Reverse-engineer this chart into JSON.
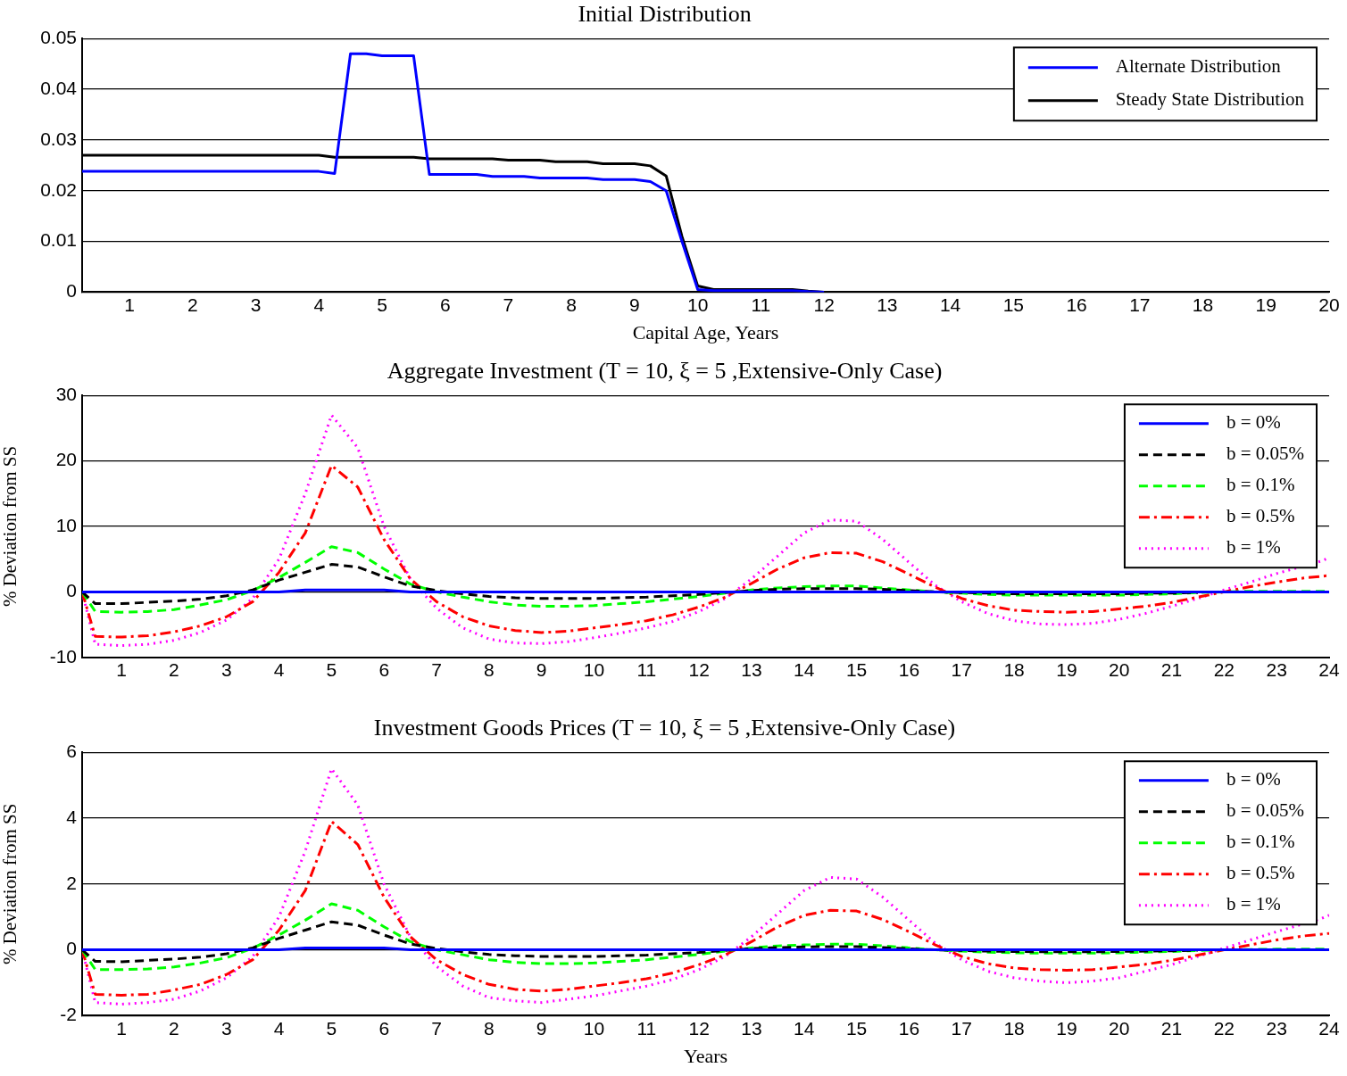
{
  "chart_data": [
    {
      "type": "line",
      "title": "Initial Distribution",
      "xlabel": "Capital Age, Years",
      "xlim": [
        0.25,
        20
      ],
      "xticks": [
        1,
        2,
        3,
        4,
        5,
        6,
        7,
        8,
        9,
        10,
        11,
        12,
        13,
        14,
        15,
        16,
        17,
        18,
        19,
        20
      ],
      "ylim": [
        0,
        0.05
      ],
      "yticks": [
        0,
        0.01,
        0.02,
        0.03,
        0.04,
        0.05
      ],
      "grid": "y",
      "legend": "top right",
      "marker": "none",
      "series": [
        {
          "name": "Alternate Distribution",
          "color": "#0000ff",
          "line_style": "solid",
          "x": [
            0.25,
            4,
            4.25,
            4.5,
            4.75,
            5,
            5.5,
            5.75,
            6.5,
            6.75,
            7.25,
            7.5,
            8.25,
            8.5,
            9,
            9.25,
            9.5,
            9.75,
            10,
            10.25,
            11.5,
            11.75,
            12
          ],
          "values": [
            0.0238,
            0.0238,
            0.0234,
            0.047,
            0.047,
            0.0466,
            0.0466,
            0.0232,
            0.0232,
            0.0228,
            0.0228,
            0.0225,
            0.0225,
            0.0222,
            0.0222,
            0.0218,
            0.02,
            0.01,
            0.0005,
            0.0003,
            0.0003,
            0.0001,
            0
          ]
        },
        {
          "name": "Steady State Distribution",
          "color": "#000000",
          "line_style": "solid",
          "x": [
            0.25,
            4,
            4.25,
            5.5,
            5.75,
            6.75,
            7,
            7.5,
            7.75,
            8.25,
            8.5,
            9,
            9.25,
            9.5,
            9.75,
            10,
            10.25,
            11.5,
            11.75,
            12
          ],
          "values": [
            0.027,
            0.027,
            0.0266,
            0.0266,
            0.0263,
            0.0263,
            0.026,
            0.026,
            0.0257,
            0.0257,
            0.0253,
            0.0253,
            0.0249,
            0.0229,
            0.011,
            0.0012,
            0.0005,
            0.0005,
            0.0002,
            0
          ]
        }
      ]
    },
    {
      "type": "line",
      "title": "Aggregate Investment (T = 10, ξ = 5 ,Extensive-Only Case)",
      "ylabel": "% Deviation from SS",
      "xlim": [
        0.25,
        24
      ],
      "xticks": [
        1,
        2,
        3,
        4,
        5,
        6,
        7,
        8,
        9,
        10,
        11,
        12,
        13,
        14,
        15,
        16,
        17,
        18,
        19,
        20,
        21,
        22,
        23,
        24
      ],
      "ylim": [
        -10,
        30
      ],
      "yticks": [
        -10,
        0,
        10,
        20,
        30
      ],
      "grid": "y",
      "legend": "top right",
      "marker": "none",
      "x": [
        0.25,
        0.5,
        1,
        1.5,
        2,
        2.5,
        3,
        3.5,
        4,
        4.5,
        5,
        5.5,
        6,
        6.5,
        7,
        7.5,
        8,
        8.5,
        9,
        9.5,
        10,
        10.5,
        11,
        11.5,
        12,
        12.5,
        13,
        13.5,
        14,
        14.5,
        15,
        15.5,
        16,
        16.5,
        17,
        17.5,
        18,
        18.5,
        19,
        19.5,
        20,
        20.5,
        21,
        21.5,
        22,
        22.5,
        23,
        23.5,
        24
      ],
      "series": [
        {
          "name": "b = 0%",
          "color": "#0000ff",
          "line_style": "solid",
          "values": [
            0,
            0,
            0,
            0,
            0,
            0,
            0,
            0,
            0,
            0.3,
            0.3,
            0.3,
            0.3,
            0,
            0,
            0,
            0,
            0,
            0,
            0,
            0,
            0,
            0,
            0,
            0,
            0,
            0,
            0,
            0,
            0,
            0,
            0,
            0,
            0,
            0,
            0,
            0,
            0,
            0,
            0,
            0,
            0,
            0,
            0,
            0,
            0,
            0,
            0,
            0
          ]
        },
        {
          "name": "b = 0.05%",
          "color": "#000000",
          "line_style": "dashed",
          "values": [
            0,
            -1.8,
            -1.8,
            -1.6,
            -1.4,
            -1.1,
            -0.6,
            0.3,
            1.8,
            3,
            4.2,
            3.8,
            2.3,
            0.9,
            0.2,
            -0.3,
            -0.7,
            -0.9,
            -1,
            -1,
            -1,
            -0.9,
            -0.8,
            -0.6,
            -0.4,
            -0.1,
            0.2,
            0.4,
            0.5,
            0.5,
            0.5,
            0.4,
            0.2,
            0,
            -0.1,
            -0.2,
            -0.3,
            -0.3,
            -0.3,
            -0.3,
            -0.3,
            -0.2,
            -0.2,
            -0.1,
            null,
            null,
            null,
            null,
            null
          ]
        },
        {
          "name": "b = 0.1%",
          "color": "#00ff00",
          "line_style": "dashed",
          "values": [
            0,
            -3,
            -3.1,
            -3,
            -2.7,
            -2,
            -1.2,
            0.2,
            2.2,
            4.5,
            6.9,
            6,
            3.5,
            1.2,
            0,
            -0.8,
            -1.5,
            -2,
            -2.2,
            -2.2,
            -2.1,
            -1.8,
            -1.5,
            -1.1,
            -0.7,
            -0.2,
            0.3,
            0.6,
            0.8,
            0.9,
            0.9,
            0.6,
            0.3,
            0,
            -0.2,
            -0.4,
            -0.5,
            -0.5,
            -0.5,
            -0.5,
            -0.5,
            -0.4,
            -0.3,
            -0.1,
            0,
            0.1,
            0.1,
            0.1,
            0.1
          ]
        },
        {
          "name": "b = 0.5%",
          "color": "#ff0000",
          "line_style": "dashdot",
          "values": [
            0,
            -6.8,
            -6.9,
            -6.7,
            -6.1,
            -5.2,
            -3.8,
            -1.5,
            3,
            9,
            19.3,
            16,
            8,
            2,
            -1.5,
            -3.8,
            -5.2,
            -5.9,
            -6.2,
            -6,
            -5.5,
            -5,
            -4.4,
            -3.5,
            -2.3,
            -0.8,
            1.3,
            3.5,
            5.2,
            6,
            5.9,
            4.6,
            2.7,
            0.7,
            -1,
            -2.1,
            -2.8,
            -3,
            -3.1,
            -3,
            -2.6,
            -2.2,
            -1.6,
            -0.8,
            0,
            0.8,
            1.5,
            2.1,
            2.5
          ]
        },
        {
          "name": "b = 1%",
          "color": "#ff00ff",
          "line_style": "dotted",
          "x": [
            0.25,
            0.5,
            1,
            1.5,
            2,
            2.5,
            3,
            3.5,
            4,
            4.5,
            5,
            5.5,
            6,
            6.5,
            7,
            7.5,
            8,
            8.5,
            9,
            9.5,
            10,
            10.5,
            11,
            11.5,
            12,
            12.5,
            13,
            13.5,
            14,
            14.5,
            15,
            15.5,
            16,
            16.5,
            17,
            17.5,
            18,
            18.5,
            19,
            19.5,
            20,
            20.5,
            21,
            21.5,
            22,
            22.5,
            23,
            23.85,
            24
          ],
          "values": [
            0,
            -8,
            -8.2,
            -8,
            -7.4,
            -6.2,
            -4.3,
            -1,
            5,
            15,
            27,
            22,
            10,
            2,
            -2.5,
            -5.5,
            -7.2,
            -7.8,
            -7.9,
            -7.6,
            -7,
            -6.3,
            -5.5,
            -4.5,
            -3,
            -1,
            2,
            5.5,
            9,
            11,
            10.8,
            8,
            4.5,
            1,
            -1.5,
            -3.3,
            -4.4,
            -4.9,
            -5,
            -4.8,
            -4.2,
            -3.3,
            -2.2,
            -1,
            0.3,
            1.5,
            2.8,
            4.7,
            5.2
          ]
        }
      ]
    },
    {
      "type": "line",
      "title": "Investment Goods Prices (T = 10, ξ = 5 ,Extensive-Only Case)",
      "xlabel": "Years",
      "ylabel": "% Deviation from SS",
      "xlim": [
        0.25,
        24
      ],
      "xticks": [
        1,
        2,
        3,
        4,
        5,
        6,
        7,
        8,
        9,
        10,
        11,
        12,
        13,
        14,
        15,
        16,
        17,
        18,
        19,
        20,
        21,
        22,
        23,
        24
      ],
      "ylim": [
        -2,
        6
      ],
      "yticks": [
        -2,
        0,
        2,
        4,
        6
      ],
      "grid": "y",
      "legend": "top right",
      "marker": "none",
      "x": [
        0.25,
        0.5,
        1,
        1.5,
        2,
        2.5,
        3,
        3.5,
        4,
        4.5,
        5,
        5.5,
        6,
        6.5,
        7,
        7.5,
        8,
        8.5,
        9,
        9.5,
        10,
        10.5,
        11,
        11.5,
        12,
        12.5,
        13,
        13.5,
        14,
        14.5,
        15,
        15.5,
        16,
        16.5,
        17,
        17.5,
        18,
        18.5,
        19,
        19.5,
        20,
        20.5,
        21,
        21.5,
        22,
        22.5,
        23,
        23.5,
        24
      ],
      "series": [
        {
          "name": "b = 0%",
          "color": "#0000ff",
          "line_style": "solid",
          "values": [
            0,
            0,
            0,
            0,
            0,
            0,
            0,
            0,
            0,
            0.06,
            0.06,
            0.06,
            0.06,
            0,
            0,
            0,
            0,
            0,
            0,
            0,
            0,
            0,
            0,
            0,
            0,
            0,
            0,
            0,
            0,
            0,
            0,
            0,
            0,
            0,
            0,
            0,
            0,
            0,
            0,
            0,
            0,
            0,
            0,
            0,
            0,
            0,
            0,
            0,
            0
          ]
        },
        {
          "name": "b = 0.05%",
          "color": "#000000",
          "line_style": "dashed",
          "values": [
            0,
            -0.35,
            -0.36,
            -0.32,
            -0.28,
            -0.22,
            -0.12,
            0.06,
            0.35,
            0.6,
            0.85,
            0.75,
            0.45,
            0.18,
            0.04,
            -0.06,
            -0.14,
            -0.18,
            -0.2,
            -0.2,
            -0.2,
            -0.18,
            -0.16,
            -0.12,
            -0.08,
            -0.02,
            0.04,
            0.07,
            0.09,
            0.1,
            0.1,
            0.07,
            0.03,
            0,
            -0.02,
            -0.04,
            -0.05,
            -0.06,
            -0.06,
            -0.06,
            -0.05,
            -0.04,
            -0.03,
            -0.01,
            null,
            null,
            null,
            null,
            null
          ]
        },
        {
          "name": "b = 0.1%",
          "color": "#00ff00",
          "line_style": "dashed",
          "values": [
            0,
            -0.6,
            -0.6,
            -0.58,
            -0.52,
            -0.4,
            -0.24,
            0.05,
            0.45,
            0.9,
            1.4,
            1.2,
            0.7,
            0.25,
            0,
            -0.15,
            -0.3,
            -0.38,
            -0.42,
            -0.42,
            -0.4,
            -0.35,
            -0.3,
            -0.22,
            -0.14,
            -0.04,
            0.06,
            0.12,
            0.15,
            0.17,
            0.17,
            0.12,
            0.06,
            0,
            -0.04,
            -0.07,
            -0.09,
            -0.1,
            -0.1,
            -0.1,
            -0.09,
            -0.07,
            -0.05,
            -0.02,
            0,
            0.01,
            0.02,
            0.02,
            0.02
          ]
        },
        {
          "name": "b = 0.5%",
          "color": "#ff0000",
          "line_style": "dashdot",
          "values": [
            0,
            -1.35,
            -1.38,
            -1.35,
            -1.22,
            -1.05,
            -0.75,
            -0.3,
            0.6,
            1.8,
            3.9,
            3.2,
            1.6,
            0.4,
            -0.3,
            -0.75,
            -1.05,
            -1.2,
            -1.25,
            -1.2,
            -1.1,
            -1,
            -0.88,
            -0.7,
            -0.45,
            -0.15,
            0.25,
            0.7,
            1.05,
            1.2,
            1.18,
            0.92,
            0.55,
            0.15,
            -0.2,
            -0.42,
            -0.55,
            -0.6,
            -0.62,
            -0.6,
            -0.52,
            -0.44,
            -0.32,
            -0.16,
            0,
            0.15,
            0.3,
            0.42,
            0.5
          ]
        },
        {
          "name": "b = 1%",
          "color": "#ff00ff",
          "line_style": "dotted",
          "x": [
            0.25,
            0.5,
            1,
            1.5,
            2,
            2.5,
            3,
            3.5,
            4,
            4.5,
            5,
            5.5,
            6,
            6.5,
            7,
            7.5,
            8,
            8.5,
            9,
            9.5,
            10,
            10.5,
            11,
            11.5,
            12,
            12.5,
            13,
            13.5,
            14,
            14.5,
            15,
            15.5,
            16,
            16.5,
            17,
            17.5,
            18,
            18.5,
            19,
            19.5,
            20,
            20.5,
            21,
            21.5,
            22,
            22.5,
            23,
            23.85,
            24
          ],
          "values": [
            0,
            -1.6,
            -1.65,
            -1.6,
            -1.5,
            -1.25,
            -0.85,
            -0.2,
            1,
            3,
            5.5,
            4.4,
            2,
            0.4,
            -0.5,
            -1.1,
            -1.45,
            -1.55,
            -1.6,
            -1.5,
            -1.4,
            -1.25,
            -1.1,
            -0.9,
            -0.6,
            -0.2,
            0.4,
            1.1,
            1.8,
            2.2,
            2.15,
            1.6,
            0.9,
            0.2,
            -0.3,
            -0.65,
            -0.85,
            -0.95,
            -1,
            -0.95,
            -0.85,
            -0.65,
            -0.45,
            -0.2,
            0.05,
            0.3,
            0.55,
            0.95,
            1.05
          ]
        }
      ]
    }
  ]
}
